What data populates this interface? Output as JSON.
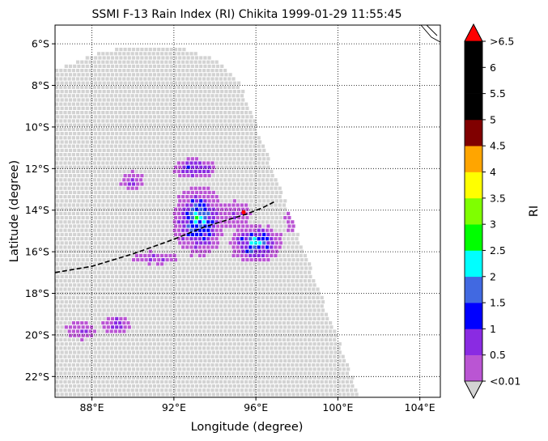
{
  "chart_data": {
    "type": "heatmap",
    "title": "SSMI F-13 Rain Index (RI) Chikita 1999-01-29 11:55:45",
    "xlabel": "Longitude (degree)",
    "ylabel": "Latitude (degree)",
    "xlim": [
      86.2,
      105.0
    ],
    "ylim": [
      -23.0,
      -5.1
    ],
    "x_ticks": [
      {
        "value": 88,
        "label": "88°E"
      },
      {
        "value": 92,
        "label": "92°E"
      },
      {
        "value": 96,
        "label": "96°E"
      },
      {
        "value": 100,
        "label": "100°E"
      },
      {
        "value": 104,
        "label": "104°E"
      }
    ],
    "y_ticks": [
      {
        "value": -6,
        "label": "6°S"
      },
      {
        "value": -8,
        "label": "8°S"
      },
      {
        "value": -10,
        "label": "10°S"
      },
      {
        "value": -12,
        "label": "12°S"
      },
      {
        "value": -14,
        "label": "14°S"
      },
      {
        "value": -16,
        "label": "16°S"
      },
      {
        "value": -18,
        "label": "18°S"
      },
      {
        "value": -20,
        "label": "20°S"
      },
      {
        "value": -22,
        "label": "22°S"
      }
    ],
    "grid": true,
    "colorbar": {
      "label": "RI",
      "bounds": [
        0.01,
        0.5,
        1,
        1.5,
        2,
        2.5,
        3,
        3.5,
        4,
        4.5,
        5,
        5.5,
        6,
        6.5
      ],
      "colors": [
        "#ba55d3",
        "#8a2be2",
        "#0000ff",
        "#4169e1",
        "#00ffff",
        "#00ff00",
        "#7fff00",
        "#ffff00",
        "#ffa500",
        "#800000",
        "#000000",
        "#000000",
        "#000000"
      ],
      "under_color": "#d3d3d3",
      "over_color": "#ff0000",
      "tick_labels": [
        "<0.01",
        "0.5",
        "1",
        "1.5",
        "2",
        "2.5",
        "3",
        "3.5",
        "4",
        "4.5",
        "5",
        "5.5",
        "6",
        ">6.5"
      ]
    },
    "swath": {
      "no_rain_color": "#d3d3d3",
      "outline_lonlat": [
        [
          86.2,
          -7.3
        ],
        [
          88,
          -6.5
        ],
        [
          90,
          -6.1
        ],
        [
          92,
          -6.1
        ],
        [
          94,
          -6.7
        ],
        [
          95.2,
          -7.8
        ],
        [
          101.1,
          -23.0
        ],
        [
          86.2,
          -23.0
        ]
      ]
    },
    "rain_clusters": [
      {
        "lon": 93.2,
        "lat": -14.5,
        "spread_lon": 0.75,
        "spread_lat": 1.05,
        "peak": 2.3
      },
      {
        "lon": 96.0,
        "lat": -15.6,
        "spread_lon": 0.8,
        "spread_lat": 0.55,
        "peak": 2.2
      },
      {
        "lon": 93.0,
        "lat": -12.0,
        "spread_lon": 0.7,
        "spread_lat": 0.35,
        "peak": 1.3
      },
      {
        "lon": 97.9,
        "lat": -14.3,
        "spread_lon": 0.35,
        "spread_lat": 0.6,
        "peak": 0.9
      },
      {
        "lon": 89.2,
        "lat": -19.5,
        "spread_lon": 0.45,
        "spread_lat": 0.3,
        "peak": 1.1
      },
      {
        "lon": 87.4,
        "lat": -19.8,
        "spread_lon": 0.6,
        "spread_lat": 0.35,
        "peak": 0.6
      },
      {
        "lon": 91.1,
        "lat": -16.3,
        "spread_lon": 0.9,
        "spread_lat": 0.25,
        "peak": 0.6
      },
      {
        "lon": 90.0,
        "lat": -12.6,
        "spread_lon": 0.45,
        "spread_lat": 0.35,
        "peak": 0.7
      },
      {
        "lon": 95.0,
        "lat": -14.2,
        "spread_lon": 0.6,
        "spread_lat": 0.5,
        "peak": 0.7
      }
    ],
    "storm_track": {
      "lon": [
        86.2,
        88.0,
        90.0,
        92.0,
        93.5,
        94.5,
        95.5,
        96.3,
        96.9
      ],
      "lat": [
        -17.0,
        -16.7,
        -16.1,
        -15.4,
        -14.8,
        -14.5,
        -14.2,
        -13.9,
        -13.6
      ]
    },
    "storm_position": {
      "lon": 95.4,
      "lat": -14.1
    }
  }
}
